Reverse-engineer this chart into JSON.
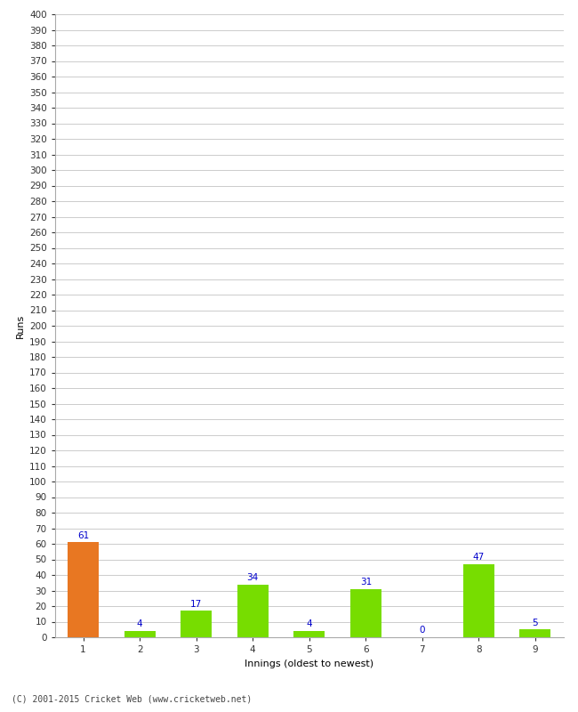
{
  "categories": [
    "1",
    "2",
    "3",
    "4",
    "5",
    "6",
    "7",
    "8",
    "9"
  ],
  "values": [
    61,
    4,
    17,
    34,
    4,
    31,
    0,
    47,
    5
  ],
  "bar_colors": [
    "#e87722",
    "#77dd00",
    "#77dd00",
    "#77dd00",
    "#77dd00",
    "#77dd00",
    "#77dd00",
    "#77dd00",
    "#77dd00"
  ],
  "xlabel": "Innings (oldest to newest)",
  "ylabel": "Runs",
  "ylim": [
    0,
    400
  ],
  "yticks": [
    0,
    10,
    20,
    30,
    40,
    50,
    60,
    70,
    80,
    90,
    100,
    110,
    120,
    130,
    140,
    150,
    160,
    170,
    180,
    190,
    200,
    210,
    220,
    230,
    240,
    250,
    260,
    270,
    280,
    290,
    300,
    310,
    320,
    330,
    340,
    350,
    360,
    370,
    380,
    390,
    400
  ],
  "label_color": "#0000cc",
  "label_fontsize": 7.5,
  "axis_label_fontsize": 8,
  "tick_fontsize": 7.5,
  "background_color": "#ffffff",
  "grid_color": "#cccccc",
  "footer": "(C) 2001-2015 Cricket Web (www.cricketweb.net)",
  "bar_width": 0.55
}
